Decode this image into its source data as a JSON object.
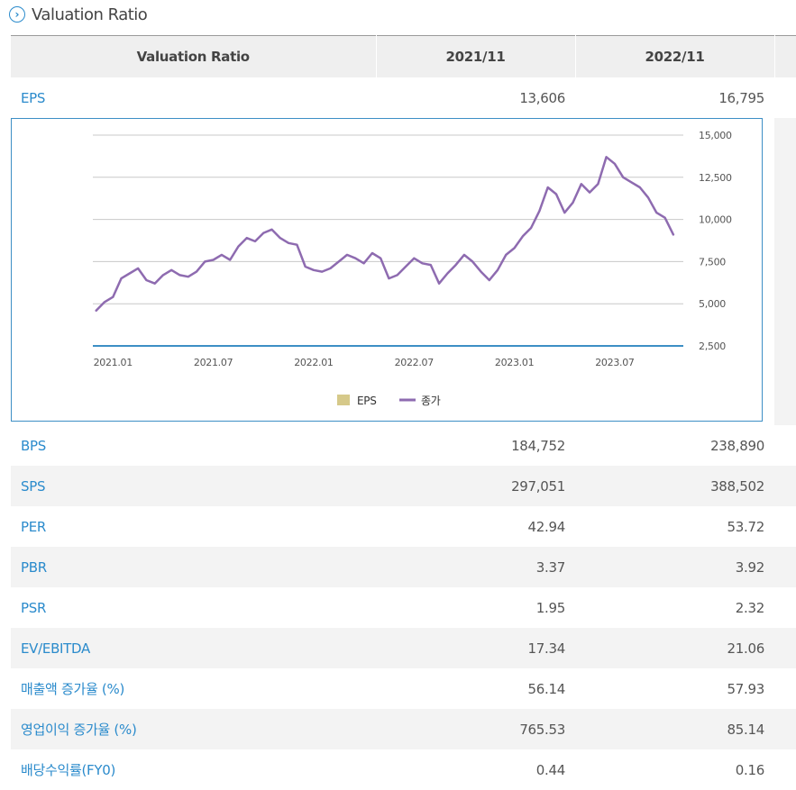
{
  "section": {
    "title": "Valuation Ratio",
    "icon": "chevron-right-circle-icon"
  },
  "table": {
    "headers": [
      "Valuation Ratio",
      "2021/11",
      "2022/11"
    ],
    "eps": {
      "label": "EPS",
      "values": [
        "13,606",
        "16,795"
      ]
    },
    "rows": [
      {
        "label": "BPS",
        "values": [
          "184,752",
          "238,890"
        ]
      },
      {
        "label": "SPS",
        "values": [
          "297,051",
          "388,502"
        ]
      },
      {
        "label": "PER",
        "values": [
          "42.94",
          "53.72"
        ]
      },
      {
        "label": "PBR",
        "values": [
          "3.37",
          "3.92"
        ]
      },
      {
        "label": "PSR",
        "values": [
          "1.95",
          "2.32"
        ]
      },
      {
        "label": "EV/EBITDA",
        "values": [
          "17.34",
          "21.06"
        ]
      },
      {
        "label": "매출액 증가율 (%)",
        "values": [
          "56.14",
          "57.93"
        ]
      },
      {
        "label": "영업이익 증가율 (%)",
        "values": [
          "765.53",
          "85.14"
        ]
      },
      {
        "label": "배당수익률(FY0)",
        "values": [
          "0.44",
          "0.16"
        ]
      }
    ]
  },
  "chart_data": {
    "type": "line",
    "yticks": [
      "15,000",
      "12,500",
      "10,000",
      "7,500",
      "5,000",
      "2,500"
    ],
    "ytick_values": [
      15000,
      12500,
      10000,
      7500,
      5000,
      2500
    ],
    "ylim": [
      2500,
      15000
    ],
    "xticks": [
      "2021.01",
      "2021.07",
      "2022.01",
      "2022.07",
      "2023.01",
      "2023.07"
    ],
    "xtick_positions": [
      1,
      7,
      13,
      19,
      25,
      31
    ],
    "xlim": [
      -0.2,
      35.1
    ],
    "grid": true,
    "legend": {
      "position": "bottom",
      "items": [
        {
          "name": "EPS",
          "color": "#d6c98a",
          "marker": "square"
        },
        {
          "name": "종가",
          "color": "#8e6bb0",
          "marker": "line"
        }
      ]
    },
    "eps_values": [
      2500,
      2500
    ],
    "eps_color": "#3d8fc5",
    "price_color": "#8e6bb0",
    "series_x": [
      0,
      0.5,
      1,
      1.5,
      2,
      2.5,
      3,
      3.5,
      4,
      4.5,
      5,
      5.5,
      6,
      6.5,
      7,
      7.5,
      8,
      8.5,
      9,
      9.5,
      10,
      10.5,
      11,
      11.5,
      12,
      12.5,
      13,
      13.5,
      14,
      14.5,
      15,
      15.5,
      16,
      16.5,
      17,
      17.5,
      18,
      18.5,
      19,
      19.5,
      20,
      20.5,
      21,
      21.5,
      22,
      22.5,
      23,
      23.5,
      24,
      24.5,
      25,
      25.5,
      26,
      26.5,
      27,
      27.5,
      28,
      28.5,
      29,
      29.5,
      30,
      30.5,
      31,
      31.5,
      32,
      32.5,
      33,
      33.5,
      34,
      34.5
    ],
    "series_y": [
      4600,
      5100,
      5400,
      6500,
      6800,
      7100,
      6400,
      6200,
      6700,
      7000,
      6700,
      6600,
      6900,
      7500,
      7600,
      7900,
      7600,
      8400,
      8900,
      8700,
      9200,
      9400,
      8900,
      8600,
      8500,
      7200,
      7000,
      6900,
      7100,
      7500,
      7900,
      7700,
      7400,
      8000,
      7700,
      6500,
      6700,
      7200,
      7700,
      7400,
      7300,
      6200,
      6800,
      7300,
      7900,
      7500,
      6900,
      6400,
      7000,
      7900,
      8300,
      9000,
      9500,
      10500,
      11900,
      11500,
      10400,
      11000,
      12100,
      11600,
      12100,
      13700,
      13300,
      12500,
      12200,
      11900,
      11300,
      10400,
      10100,
      9100
    ]
  }
}
